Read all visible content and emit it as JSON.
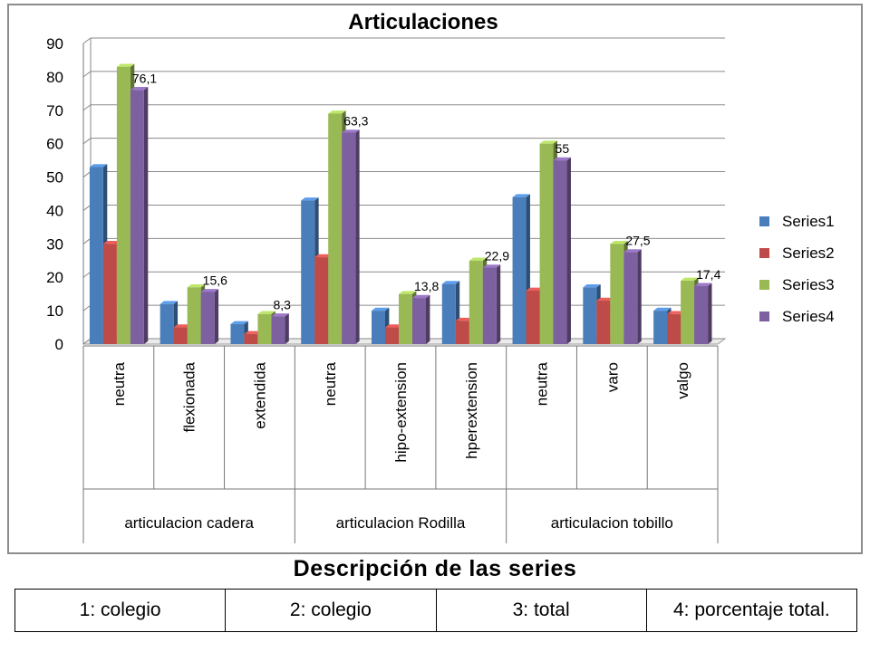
{
  "chart_data": {
    "type": "bar",
    "title": "Articulaciones",
    "ylim": [
      0,
      90
    ],
    "yticks": [
      0,
      10,
      20,
      30,
      40,
      50,
      60,
      70,
      80,
      90
    ],
    "grid": true,
    "legend_position": "right",
    "categories": [
      "neutra",
      "flexionada",
      "extendida",
      "neutra",
      "hipo-extension",
      "hperextension",
      "neutra",
      "varo",
      "valgo"
    ],
    "groups": [
      {
        "label": "articulacion cadera",
        "size": 3
      },
      {
        "label": "articulacion Rodilla",
        "size": 3
      },
      {
        "label": "articulacion tobillo",
        "size": 3
      }
    ],
    "series": [
      {
        "name": "Series1",
        "color": "#4a7ebb",
        "values": [
          53,
          12,
          6,
          43,
          10,
          18,
          44,
          17,
          10
        ]
      },
      {
        "name": "Series2",
        "color": "#be4b48",
        "values": [
          30,
          5,
          3,
          26,
          5,
          7,
          16,
          13,
          9
        ]
      },
      {
        "name": "Series3",
        "color": "#98b954",
        "values": [
          83,
          17,
          9,
          69,
          15,
          25,
          60,
          30,
          19
        ]
      },
      {
        "name": "Series4",
        "color": "#7d60a0",
        "values": [
          76.1,
          15.6,
          8.3,
          63.3,
          13.8,
          22.9,
          55,
          27.5,
          17.4
        ]
      }
    ],
    "data_labels": [
      "76,1",
      "15,6",
      "8,3",
      "63,3",
      "13,8",
      "22,9",
      "55",
      "27,5",
      "17,4"
    ]
  },
  "caption": "Descripción de las series",
  "series_descriptions": [
    "1: colegio",
    "2: colegio",
    "3: total",
    "4: porcentaje total."
  ]
}
